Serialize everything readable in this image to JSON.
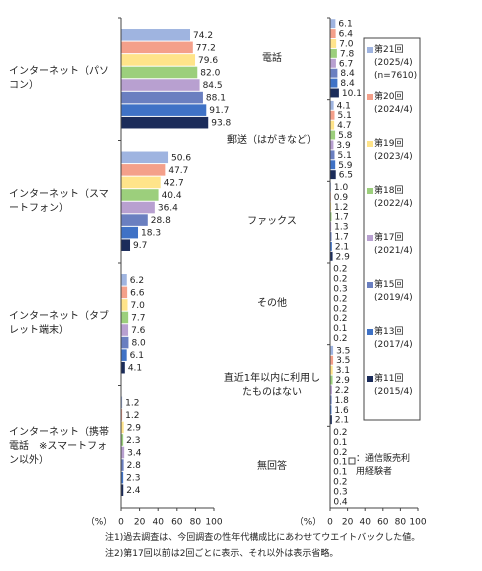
{
  "chart_data": [
    {
      "type": "bar",
      "orientation": "horizontal",
      "xlabel": "（%）",
      "categories": [
        "インターネット（パソコン）",
        "インターネット（スマートフォン）",
        "インターネット（タブレット端末）",
        "インターネット（携帯電話　※スマートフォン以外）"
      ],
      "series": [
        {
          "color": "#9fb4e0",
          "values": [
            74.2,
            50.6,
            6.2,
            1.2
          ]
        },
        {
          "color": "#f4a08a",
          "values": [
            77.2,
            47.7,
            6.6,
            1.2
          ]
        },
        {
          "color": "#ffe48a",
          "values": [
            79.6,
            42.7,
            7.0,
            2.9
          ],
          "value_labels": [
            "79.6",
            "42.7",
            "7.0",
            "2.9"
          ]
        },
        {
          "color": "#9ccf7c",
          "values": [
            82.0,
            40.4,
            7.7,
            2.3
          ],
          "value_labels": [
            "82.0",
            "40.4",
            "7.7",
            "2.3"
          ]
        },
        {
          "color": "#b8a0d0",
          "values": [
            84.5,
            36.4,
            7.6,
            3.4
          ]
        },
        {
          "color": "#6a7fc0",
          "values": [
            88.1,
            28.8,
            8.0,
            2.8
          ],
          "value_labels": [
            "88.1",
            "28.8",
            "8.0",
            "2.8"
          ]
        },
        {
          "color": "#3f72c6",
          "values": [
            91.7,
            18.3,
            6.1,
            2.3
          ]
        },
        {
          "color": "#1b2c5a",
          "values": [
            93.8,
            9.7,
            4.1,
            2.4
          ]
        }
      ],
      "xlim": [
        0,
        100
      ],
      "xticks": [
        0,
        20,
        40,
        60,
        80,
        100
      ]
    },
    {
      "type": "bar",
      "orientation": "horizontal",
      "xlabel": "（%）",
      "legend": "upper right",
      "annotation": "：通信販売利用経験者",
      "categories": [
        "電話",
        "郵送（はがきなど）",
        "ファックス",
        "その他",
        "直近1年以内に利用したものはない",
        "無回答"
      ],
      "series": [
        {
          "name": "第21回 (2025/4) (n=7610)",
          "color": "#9fb4e0",
          "values": [
            6.1,
            4.1,
            1.0,
            0.2,
            3.5,
            0.2
          ],
          "value_labels": [
            "6.1",
            "4.1",
            "1.0",
            "0.2",
            "3.5",
            "0.2"
          ]
        },
        {
          "name": "第20回 (2024/4)",
          "color": "#f4a08a",
          "values": [
            6.4,
            5.1,
            0.9,
            0.2,
            3.5,
            0.1
          ]
        },
        {
          "name": "第19回 (2023/4)",
          "color": "#ffe48a",
          "values": [
            7.0,
            4.7,
            1.2,
            0.3,
            3.1,
            0.2
          ],
          "value_labels": [
            "7.0",
            "4.7",
            "1.2",
            "0.3",
            "3.1",
            "0.2"
          ]
        },
        {
          "name": "第18回 (2022/4)",
          "color": "#9ccf7c",
          "values": [
            7.8,
            5.8,
            1.7,
            0.2,
            2.9,
            0.1
          ]
        },
        {
          "name": "第17回 (2021/4)",
          "color": "#b8a0d0",
          "values": [
            6.7,
            3.9,
            1.3,
            0.2,
            2.2,
            0.1
          ]
        },
        {
          "name": "第15回 (2019/4)",
          "color": "#6a7fc0",
          "values": [
            8.4,
            5.1,
            1.7,
            0.2,
            1.8,
            0.2
          ]
        },
        {
          "name": "第13回 (2017/4)",
          "color": "#3f72c6",
          "values": [
            8.4,
            5.9,
            2.1,
            0.1,
            1.6,
            0.3
          ]
        },
        {
          "name": "第11回 (2015/4)",
          "color": "#1b2c5a",
          "values": [
            10.1,
            6.5,
            2.9,
            0.2,
            2.1,
            0.4
          ]
        }
      ],
      "xlim": [
        0,
        100
      ],
      "xticks": [
        0,
        20,
        40,
        60,
        80,
        100
      ]
    }
  ],
  "notes": [
    "注1)過去調査は、今回調査の性年代構成比にあわせてウエイトバックした値。",
    "注2)第17回以前は2回ごとに表示、それ以外は表示省略。"
  ]
}
